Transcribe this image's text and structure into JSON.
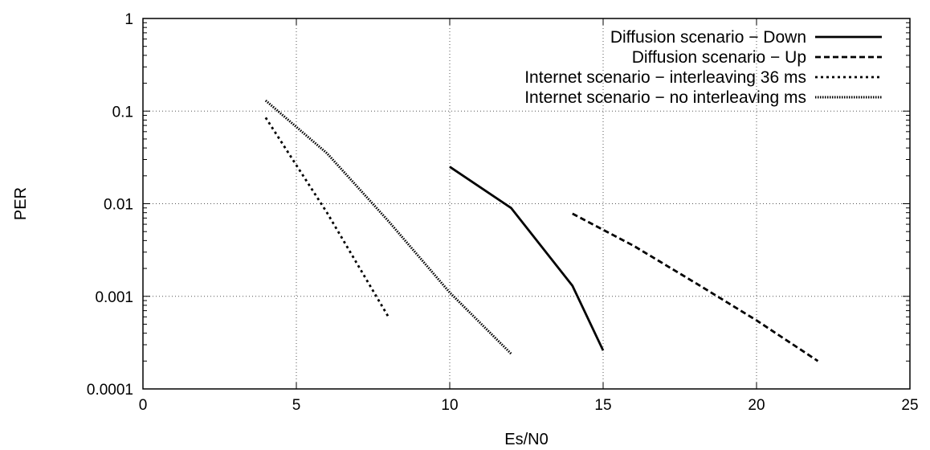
{
  "chart_data": {
    "type": "line",
    "title": "",
    "xlabel": "Es/N0",
    "ylabel": "PER",
    "xlim": [
      0,
      25
    ],
    "ylim": [
      0.0001,
      1
    ],
    "yscale": "log",
    "grid": true,
    "legend_position": "top-right",
    "x_ticks": [
      "0",
      "5",
      "10",
      "15",
      "20",
      "25"
    ],
    "y_ticks": [
      "0.0001",
      "0.001",
      "0.01",
      "0.1",
      "1"
    ],
    "series": [
      {
        "name": "Diffusion scenario − Down",
        "style": "solid",
        "x": [
          10,
          12,
          14,
          15
        ],
        "y": [
          0.025,
          0.009,
          0.0013,
          0.00026
        ]
      },
      {
        "name": "Diffusion scenario − Up",
        "style": "dashed",
        "x": [
          14,
          16,
          18,
          20,
          22
        ],
        "y": [
          0.0078,
          0.0035,
          0.0014,
          0.00055,
          0.0002
        ]
      },
      {
        "name": "Internet scenario − interleaving 36 ms",
        "style": "dotted",
        "x": [
          4,
          6,
          8
        ],
        "y": [
          0.085,
          0.008,
          0.0006
        ]
      },
      {
        "name": "Internet scenario − no interleaving ms",
        "style": "fine-dotted",
        "x": [
          4,
          6,
          8,
          10,
          12
        ],
        "y": [
          0.13,
          0.035,
          0.0065,
          0.0011,
          0.00024
        ]
      }
    ]
  }
}
